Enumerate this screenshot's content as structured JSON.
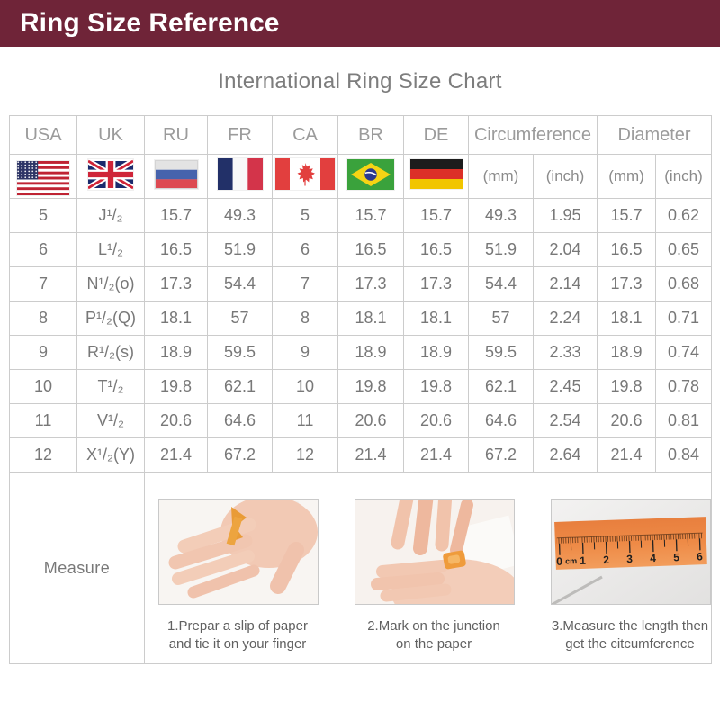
{
  "banner": {
    "title": "Ring Size Reference"
  },
  "page_title": "International Ring Size Chart",
  "colors": {
    "banner_bg": "#6F2438",
    "grid": "#CCCCCC",
    "ruler_paper_orange": "#EE8A46",
    "title_gray": "#7D7D7D"
  },
  "chart_data": {
    "type": "table",
    "title": "International Ring Size Chart",
    "country_columns": [
      {
        "code": "USA",
        "icon": "us-flag-icon"
      },
      {
        "code": "UK",
        "icon": "uk-flag-icon"
      },
      {
        "code": "RU",
        "icon": "ru-flag-icon"
      },
      {
        "code": "FR",
        "icon": "fr-flag-icon"
      },
      {
        "code": "CA",
        "icon": "ca-flag-icon"
      },
      {
        "code": "BR",
        "icon": "br-flag-icon"
      },
      {
        "code": "DE",
        "icon": "de-flag-icon"
      }
    ],
    "measure_columns": [
      {
        "label": "Circumference",
        "sub": [
          "(mm)",
          "(inch)"
        ]
      },
      {
        "label": "Diameter",
        "sub": [
          "(mm)",
          "(inch)"
        ]
      }
    ],
    "rows": [
      [
        "5",
        "J¹/₂",
        "15.7",
        "49.3",
        "5",
        "15.7",
        "15.7",
        "49.3",
        "1.95",
        "15.7",
        "0.62"
      ],
      [
        "6",
        "L¹/₂",
        "16.5",
        "51.9",
        "6",
        "16.5",
        "16.5",
        "51.9",
        "2.04",
        "16.5",
        "0.65"
      ],
      [
        "7",
        "N¹/₂(o)",
        "17.3",
        "54.4",
        "7",
        "17.3",
        "17.3",
        "54.4",
        "2.14",
        "17.3",
        "0.68"
      ],
      [
        "8",
        "P¹/₂(Q)",
        "18.1",
        "57",
        "8",
        "18.1",
        "18.1",
        "57",
        "2.24",
        "18.1",
        "0.71"
      ],
      [
        "9",
        "R¹/₂(s)",
        "18.9",
        "59.5",
        "9",
        "18.9",
        "18.9",
        "59.5",
        "2.33",
        "18.9",
        "0.74"
      ],
      [
        "10",
        "T¹/₂",
        "19.8",
        "62.1",
        "10",
        "19.8",
        "19.8",
        "62.1",
        "2.45",
        "19.8",
        "0.78"
      ],
      [
        "11",
        "V¹/₂",
        "20.6",
        "64.6",
        "11",
        "20.6",
        "20.6",
        "64.6",
        "2.54",
        "20.6",
        "0.81"
      ],
      [
        "12",
        "X¹/₂(Y)",
        "21.4",
        "67.2",
        "12",
        "21.4",
        "21.4",
        "67.2",
        "2.64",
        "21.4",
        "0.84"
      ]
    ]
  },
  "measure": {
    "label": "Measure",
    "steps": [
      {
        "caption": "1.Prepar a slip of paper\nand tie it on your finger"
      },
      {
        "caption": "2.Mark on the junction\non the paper"
      },
      {
        "caption": "3.Measure the length then\nget the citcumference"
      }
    ],
    "ruler": {
      "labels": [
        "0",
        "cm",
        "1",
        "2",
        "3",
        "4",
        "5",
        "6"
      ]
    }
  }
}
